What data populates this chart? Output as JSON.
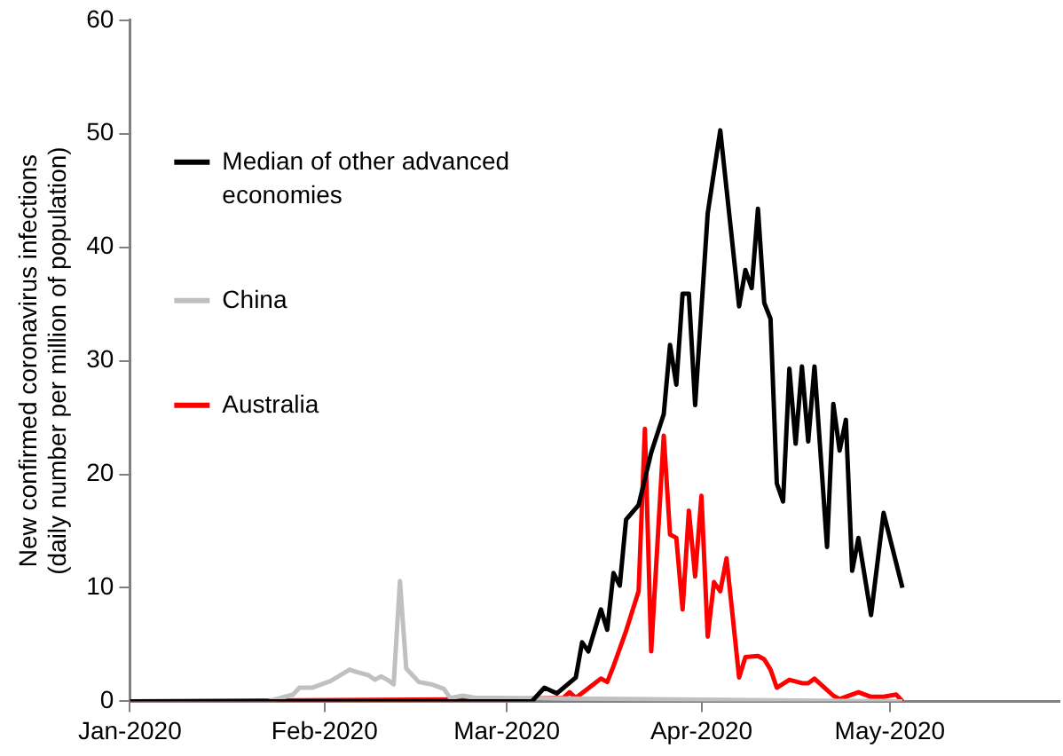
{
  "chart_data": {
    "type": "line",
    "ylabel": "New confirmed coronavirus infections\n(daily number per million of population)",
    "xlim": [
      "2020-01-01",
      "2020-05-28"
    ],
    "xticks": [
      {
        "value": "2020-01-01",
        "label": "Jan-2020"
      },
      {
        "value": "2020-02-01",
        "label": "Feb-2020"
      },
      {
        "value": "2020-03-01",
        "label": "Mar-2020"
      },
      {
        "value": "2020-04-01",
        "label": "Apr-2020"
      },
      {
        "value": "2020-05-01",
        "label": "May-2020"
      }
    ],
    "ylim": [
      0,
      60
    ],
    "yticks": [
      0,
      10,
      20,
      30,
      40,
      50,
      60
    ],
    "grid": false,
    "legend": "top left",
    "marker": "none",
    "line_style": "solid",
    "series": [
      {
        "name": "Median of other advanced economies",
        "color": "#000000",
        "x": [
          "2020-01-01",
          "2020-03-05",
          "2020-03-07",
          "2020-03-09",
          "2020-03-12",
          "2020-03-13",
          "2020-03-14",
          "2020-03-16",
          "2020-03-17",
          "2020-03-18",
          "2020-03-19",
          "2020-03-20",
          "2020-03-22",
          "2020-03-24",
          "2020-03-26",
          "2020-03-27",
          "2020-03-28",
          "2020-03-29",
          "2020-03-30",
          "2020-03-31",
          "2020-04-02",
          "2020-04-04",
          "2020-04-07",
          "2020-04-08",
          "2020-04-09",
          "2020-04-10",
          "2020-04-11",
          "2020-04-12",
          "2020-04-13",
          "2020-04-14",
          "2020-04-15",
          "2020-04-16",
          "2020-04-17",
          "2020-04-18",
          "2020-04-19",
          "2020-04-21",
          "2020-04-22",
          "2020-04-23",
          "2020-04-24",
          "2020-04-25",
          "2020-04-26",
          "2020-04-28",
          "2020-04-30",
          "2020-05-03"
        ],
        "values": [
          0,
          0,
          1.2,
          0.7,
          2.1,
          5.2,
          4.4,
          8.1,
          6.3,
          11.3,
          10.2,
          16,
          17.3,
          21.9,
          25.3,
          31.4,
          27.9,
          35.9,
          35.9,
          26.1,
          43,
          50.3,
          34.8,
          38,
          36.4,
          43.4,
          35.1,
          33.7,
          19.2,
          17.6,
          29.3,
          22.7,
          29.5,
          22.9,
          29.5,
          13.6,
          26.2,
          22.1,
          24.8,
          11.5,
          14.4,
          7.6,
          16.6,
          10
        ]
      },
      {
        "name": "China",
        "color": "#c0c0c0",
        "x": [
          "2020-01-01",
          "2020-01-23",
          "2020-01-27",
          "2020-01-28",
          "2020-01-30",
          "2020-02-02",
          "2020-02-05",
          "2020-02-06",
          "2020-02-08",
          "2020-02-09",
          "2020-02-10",
          "2020-02-11",
          "2020-02-12",
          "2020-02-13",
          "2020-02-14",
          "2020-02-16",
          "2020-02-18",
          "2020-02-20",
          "2020-02-21",
          "2020-02-23",
          "2020-02-25",
          "2020-02-28",
          "2020-05-03"
        ],
        "values": [
          0,
          0,
          0.6,
          1.2,
          1.2,
          1.8,
          2.8,
          2.6,
          2.3,
          1.9,
          2.2,
          1.9,
          1.5,
          10.6,
          2.9,
          1.7,
          1.5,
          1.1,
          0.3,
          0.5,
          0.3,
          0.3,
          0
        ]
      },
      {
        "name": "Australia",
        "color": "#ff0000",
        "x": [
          "2020-01-01",
          "2020-03-02",
          "2020-03-10",
          "2020-03-11",
          "2020-03-12",
          "2020-03-16",
          "2020-03-17",
          "2020-03-18",
          "2020-03-20",
          "2020-03-22",
          "2020-03-23",
          "2020-03-24",
          "2020-03-26",
          "2020-03-27",
          "2020-03-28",
          "2020-03-29",
          "2020-03-30",
          "2020-03-31",
          "2020-04-01",
          "2020-04-02",
          "2020-04-03",
          "2020-04-04",
          "2020-04-05",
          "2020-04-07",
          "2020-04-08",
          "2020-04-10",
          "2020-04-11",
          "2020-04-12",
          "2020-04-13",
          "2020-04-15",
          "2020-04-17",
          "2020-04-18",
          "2020-04-19",
          "2020-04-21",
          "2020-04-22",
          "2020-04-23",
          "2020-04-26",
          "2020-04-28",
          "2020-04-30",
          "2020-05-02",
          "2020-05-03"
        ],
        "values": [
          0,
          0.2,
          0.3,
          0.8,
          0.3,
          2,
          1.7,
          3.1,
          6.2,
          9.7,
          24,
          4.4,
          23.4,
          14.7,
          14.4,
          8.1,
          16.8,
          11,
          18.1,
          5.7,
          10.5,
          9.7,
          12.6,
          2.1,
          3.9,
          4,
          3.7,
          2.8,
          1.2,
          1.9,
          1.6,
          1.6,
          2,
          1,
          0.5,
          0.2,
          0.8,
          0.4,
          0.4,
          0.6,
          0
        ]
      }
    ]
  }
}
